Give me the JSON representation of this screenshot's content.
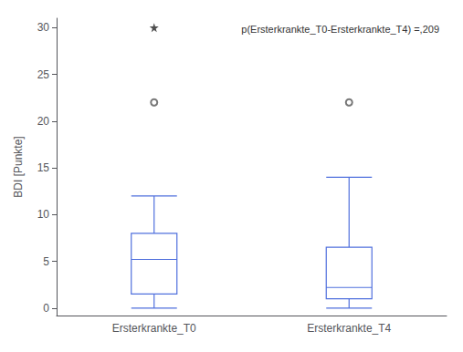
{
  "chart_data": {
    "type": "box",
    "categories": [
      "Ersterkrankte_T0",
      "Ersterkrankte_T4"
    ],
    "whisker_low": [
      0,
      0
    ],
    "q1": [
      1.5,
      1.0
    ],
    "median": [
      5.2,
      2.2
    ],
    "q3": [
      8.0,
      6.5
    ],
    "whisker_high": [
      12.0,
      14.0
    ],
    "outliers": [
      [
        22
      ],
      [
        22
      ]
    ],
    "far_outliers": [
      [
        30
      ],
      []
    ],
    "ylabel": "BDI [Punkte]",
    "annotation": "p(Ersterkrankte_T0-Ersterkrankte_T4) =,209",
    "ylim": [
      -0.8,
      31
    ],
    "yticks": [
      0,
      5,
      10,
      15,
      20,
      25,
      30
    ],
    "grid": false
  }
}
